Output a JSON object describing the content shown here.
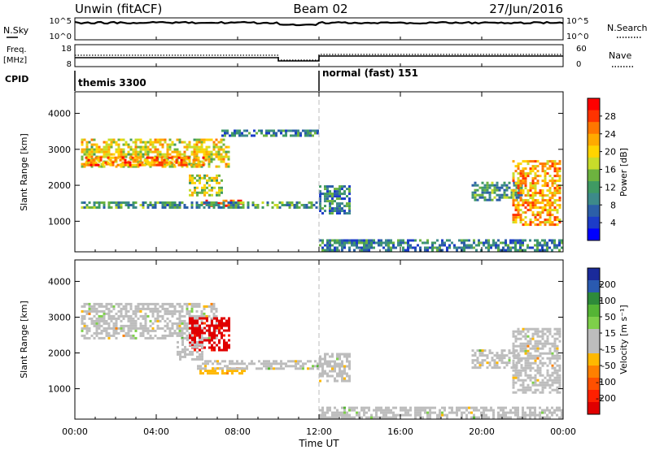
{
  "header": {
    "station": "Unwin (fitACF)",
    "beam": "Beam 02",
    "date": "27/Jun/2016"
  },
  "top_strips": {
    "sky_label": "N.Sky",
    "sky_ticks": [
      "10^5",
      "10^0"
    ],
    "search_label": "N.Search",
    "freq_label": "Freq.",
    "freq_unit": "[MHz]",
    "freq_ticks": [
      "18",
      "8"
    ],
    "nave_ticks": [
      "60",
      "0"
    ],
    "nave_label": "Nave",
    "cpid_label": "CPID",
    "cpid_segments": [
      "themis 3300",
      "normal (fast) 151"
    ]
  },
  "axes": {
    "x_ticks": [
      "00:00",
      "04:00",
      "08:00",
      "12:00",
      "16:00",
      "20:00",
      "00:00"
    ],
    "x_label": "Time UT",
    "y_ticks": [
      "4000",
      "3000",
      "2000",
      "1000"
    ],
    "y_label": "Slant Range [km]"
  },
  "power_bar": {
    "label": "Power [dB]",
    "ticks": [
      "28",
      "24",
      "20",
      "16",
      "12",
      "8",
      "4"
    ],
    "colors": [
      "#ff0000",
      "#ff3300",
      "#ff7700",
      "#ffaa00",
      "#ffd400",
      "#c8dc2a",
      "#6db33f",
      "#3f9a63",
      "#3d8a8a",
      "#2c5fa8",
      "#1c3cc8",
      "#0000ff"
    ]
  },
  "velocity_bar": {
    "label": "Velocity [m s⁻¹]",
    "ticks": [
      "200",
      "100",
      "50",
      "15",
      "-15",
      "-50",
      "-100",
      "-200"
    ],
    "colors": [
      "#1a2a9a",
      "#2a5ab0",
      "#2e8a3a",
      "#55b535",
      "#7ed04a",
      "#bdbdbd",
      "#bdbdbd",
      "#ffb800",
      "#ff8000",
      "#ff5000",
      "#ff2000",
      "#e00000"
    ]
  },
  "chart_data": [
    {
      "type": "heatmap",
      "title": "Power [dB]",
      "xlabel": "Time UT",
      "ylabel": "Slant Range [km]",
      "xlim": [
        "00:00",
        "24:00"
      ],
      "ylim": [
        150,
        4600
      ],
      "zlim": [
        0,
        30
      ],
      "regions": [
        {
          "t": [
            0.3,
            7.6
          ],
          "r": [
            2500,
            3300
          ],
          "z": 18
        },
        {
          "t": [
            0.5,
            6.5
          ],
          "r": [
            2550,
            2800
          ],
          "z": 24
        },
        {
          "t": [
            6.3,
            8.2
          ],
          "r": [
            1400,
            1600
          ],
          "z": 27
        },
        {
          "t": [
            5.6,
            7.2
          ],
          "r": [
            1700,
            2300
          ],
          "z": 16
        },
        {
          "t": [
            0.3,
            12.0
          ],
          "r": [
            1350,
            1550
          ],
          "z": 10
        },
        {
          "t": [
            7.2,
            12.0
          ],
          "r": [
            3350,
            3550
          ],
          "z": 8
        },
        {
          "t": [
            12.0,
            13.5
          ],
          "r": [
            1200,
            2000
          ],
          "z": 8
        },
        {
          "t": [
            12.0,
            23.9
          ],
          "r": [
            200,
            500
          ],
          "z": 8
        },
        {
          "t": [
            19.5,
            22.0
          ],
          "r": [
            1600,
            2100
          ],
          "z": 10
        },
        {
          "t": [
            21.5,
            23.9
          ],
          "r": [
            900,
            2700
          ],
          "z": 22
        }
      ]
    },
    {
      "type": "heatmap",
      "title": "Velocity [m s⁻¹]",
      "xlabel": "Time UT",
      "ylabel": "Slant Range [km]",
      "xlim": [
        "00:00",
        "24:00"
      ],
      "ylim": [
        150,
        4600
      ],
      "zlim": [
        -200,
        200
      ],
      "regions": [
        {
          "t": [
            0.3,
            7.0
          ],
          "r": [
            2400,
            3400
          ],
          "v": 0
        },
        {
          "t": [
            5.6,
            7.6
          ],
          "r": [
            2100,
            3000
          ],
          "v": -200
        },
        {
          "t": [
            5.0,
            6.3
          ],
          "r": [
            1800,
            2400
          ],
          "v": 0
        },
        {
          "t": [
            6.0,
            8.5
          ],
          "r": [
            1400,
            1600
          ],
          "v": -50
        },
        {
          "t": [
            6.0,
            12.0
          ],
          "r": [
            1550,
            1800
          ],
          "v": 15
        },
        {
          "t": [
            12.0,
            13.5
          ],
          "r": [
            1200,
            2000
          ],
          "v": 0
        },
        {
          "t": [
            12.0,
            23.9
          ],
          "r": [
            200,
            500
          ],
          "v": 15
        },
        {
          "t": [
            19.5,
            22.0
          ],
          "r": [
            1600,
            2100
          ],
          "v": 0
        },
        {
          "t": [
            21.5,
            23.9
          ],
          "r": [
            900,
            2700
          ],
          "v": 0
        }
      ]
    }
  ]
}
